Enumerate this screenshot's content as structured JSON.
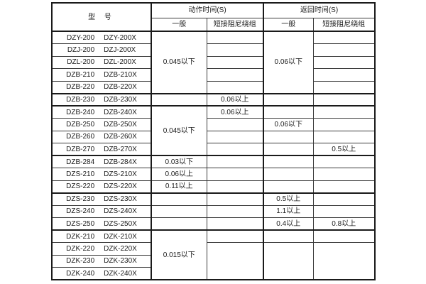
{
  "colors": {
    "background": "#ffffff",
    "grid": "#3b3b3b",
    "grid_strong": "#1a1a1a",
    "text": "#1a1a1a"
  },
  "header": {
    "model": "型 号",
    "action_time": "动作时间(S)",
    "return_time": "返回时间(S)",
    "general": "一般",
    "damped_winding": "短接阻尼绕组"
  },
  "table": {
    "models": [
      [
        "DZY-200",
        "DZY-200X"
      ],
      [
        "DZJ-200",
        "DZJ-200X"
      ],
      [
        "DZL-200",
        "DZL-200X"
      ],
      [
        "DZB-210",
        "DZB-210X"
      ],
      [
        "DZB-220",
        "DZB-220X"
      ],
      [
        "DZB-230",
        "DZB-230X"
      ],
      [
        "DZB-240",
        "DZB-240X"
      ],
      [
        "DZB-250",
        "DZB-250X"
      ],
      [
        "DZB-260",
        "DZB-260X"
      ],
      [
        "DZB-270",
        "DZB-270X"
      ],
      [
        "DZB-284",
        "DZB-284X"
      ],
      [
        "DZS-210",
        "DZS-210X"
      ],
      [
        "DZS-220",
        "DZS-220X"
      ],
      [
        "DZS-230",
        "DZS-230X"
      ],
      [
        "DZS-240",
        "DZS-240X"
      ],
      [
        "DZS-250",
        "DZS-250X"
      ],
      [
        "DZK-210",
        "DZK-210X"
      ],
      [
        "DZK-220",
        "DZK-220X"
      ],
      [
        "DZK-230",
        "DZK-230X"
      ],
      [
        "DZK-240",
        "DZK-240X"
      ]
    ],
    "action_general": [
      {
        "span": 5,
        "text": "0.045以下"
      },
      {
        "span": 1,
        "text": ""
      },
      {
        "span": 4,
        "text": "0.045以下"
      },
      {
        "span": 1,
        "text": "0.03以下"
      },
      {
        "span": 1,
        "text": "0.06以上"
      },
      {
        "span": 1,
        "text": "0.11以上"
      },
      {
        "span": 1,
        "text": ""
      },
      {
        "span": 1,
        "text": ""
      },
      {
        "span": 1,
        "text": ""
      },
      {
        "span": 4,
        "text": "0.015以下"
      }
    ],
    "action_damped": [
      {
        "span": 1,
        "text": ""
      },
      {
        "span": 1,
        "text": ""
      },
      {
        "span": 1,
        "text": ""
      },
      {
        "span": 1,
        "text": ""
      },
      {
        "span": 1,
        "text": ""
      },
      {
        "span": 1,
        "text": "0.06以上"
      },
      {
        "span": 1,
        "text": "0.06以上"
      },
      {
        "span": 1,
        "text": ""
      },
      {
        "span": 1,
        "text": ""
      },
      {
        "span": 1,
        "text": ""
      },
      {
        "span": 1,
        "text": ""
      },
      {
        "span": 1,
        "text": ""
      },
      {
        "span": 1,
        "text": ""
      },
      {
        "span": 1,
        "text": ""
      },
      {
        "span": 1,
        "text": ""
      },
      {
        "span": 1,
        "text": ""
      },
      {
        "span": 1,
        "text": ""
      },
      {
        "span": 3,
        "text": ""
      }
    ],
    "return_general": [
      {
        "span": 5,
        "text": "0.06以下"
      },
      {
        "span": 1,
        "text": ""
      },
      {
        "span": 1,
        "text": ""
      },
      {
        "span": 1,
        "text": "0.06以下"
      },
      {
        "span": 1,
        "text": ""
      },
      {
        "span": 1,
        "text": ""
      },
      {
        "span": 1,
        "text": ""
      },
      {
        "span": 1,
        "text": ""
      },
      {
        "span": 1,
        "text": ""
      },
      {
        "span": 1,
        "text": "0.5以上"
      },
      {
        "span": 1,
        "text": "1.1以上"
      },
      {
        "span": 1,
        "text": "0.4以上"
      },
      {
        "span": 1,
        "text": ""
      },
      {
        "span": 3,
        "text": ""
      }
    ],
    "return_damped": [
      {
        "span": 1,
        "text": ""
      },
      {
        "span": 1,
        "text": ""
      },
      {
        "span": 1,
        "text": ""
      },
      {
        "span": 1,
        "text": ""
      },
      {
        "span": 1,
        "text": ""
      },
      {
        "span": 1,
        "text": ""
      },
      {
        "span": 1,
        "text": ""
      },
      {
        "span": 1,
        "text": ""
      },
      {
        "span": 1,
        "text": ""
      },
      {
        "span": 1,
        "text": "0.5以上"
      },
      {
        "span": 1,
        "text": ""
      },
      {
        "span": 1,
        "text": ""
      },
      {
        "span": 1,
        "text": ""
      },
      {
        "span": 1,
        "text": ""
      },
      {
        "span": 1,
        "text": ""
      },
      {
        "span": 1,
        "text": "0.8以上"
      },
      {
        "span": 1,
        "text": ""
      },
      {
        "span": 3,
        "text": ""
      }
    ]
  }
}
